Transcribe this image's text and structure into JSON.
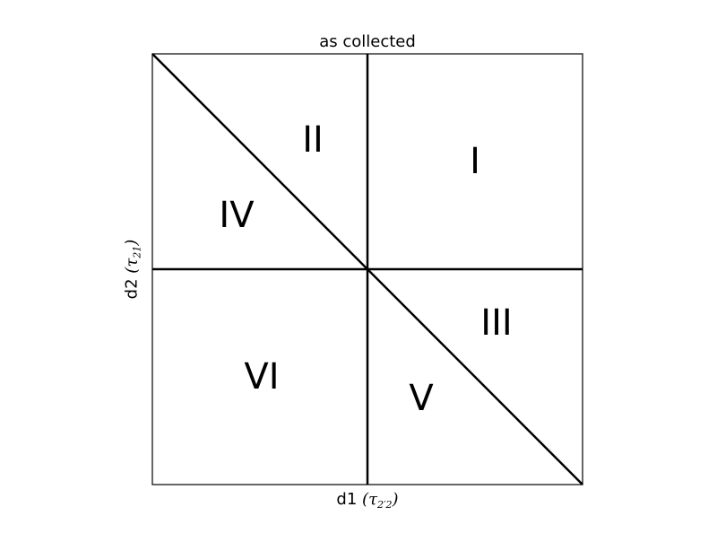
{
  "diagram": {
    "title": "as collected",
    "xlabel": {
      "text": "d1",
      "open": "(",
      "symbol": "τ",
      "subscript": "2′2",
      "close": ")"
    },
    "ylabel": {
      "text": "d2",
      "open": "(",
      "symbol": "τ",
      "subscript": "21",
      "close": ")"
    },
    "regions": [
      {
        "id": "I",
        "label": "I"
      },
      {
        "id": "II",
        "label": "II"
      },
      {
        "id": "III",
        "label": "III"
      },
      {
        "id": "IV",
        "label": "IV"
      },
      {
        "id": "V",
        "label": "V"
      },
      {
        "id": "VI",
        "label": "VI"
      }
    ]
  }
}
